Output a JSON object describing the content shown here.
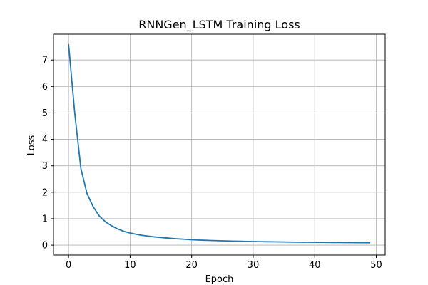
{
  "chart_data": {
    "type": "line",
    "title": "RNNGen_LSTM Training Loss",
    "xlabel": "Epoch",
    "ylabel": "Loss",
    "xlim": [
      -2.45,
      51.45
    ],
    "ylim": [
      -0.375,
      7.975
    ],
    "xticks": [
      0,
      10,
      20,
      30,
      40,
      50
    ],
    "yticks": [
      0,
      1,
      2,
      3,
      4,
      5,
      6,
      7
    ],
    "grid": true,
    "legend": "none",
    "colors": {
      "line": "#1f77b4",
      "grid": "#b0b0b0",
      "axes": "#000000"
    },
    "series": [
      {
        "x": [
          0,
          1,
          2,
          3,
          4,
          5,
          6,
          7,
          8,
          9,
          10,
          11,
          12,
          13,
          14,
          15,
          16,
          17,
          18,
          19,
          20,
          21,
          22,
          23,
          24,
          25,
          26,
          27,
          28,
          29,
          30,
          31,
          32,
          33,
          34,
          35,
          36,
          37,
          38,
          39,
          40,
          41,
          42,
          43,
          44,
          45,
          46,
          47,
          48,
          49
        ],
        "values": [
          7.6,
          5.0,
          2.9,
          1.95,
          1.45,
          1.1,
          0.88,
          0.73,
          0.61,
          0.52,
          0.46,
          0.41,
          0.37,
          0.34,
          0.31,
          0.29,
          0.27,
          0.25,
          0.235,
          0.22,
          0.205,
          0.195,
          0.185,
          0.177,
          0.17,
          0.163,
          0.157,
          0.151,
          0.146,
          0.141,
          0.137,
          0.133,
          0.129,
          0.126,
          0.123,
          0.12,
          0.117,
          0.114,
          0.112,
          0.11,
          0.108,
          0.106,
          0.104,
          0.102,
          0.1,
          0.098,
          0.096,
          0.094,
          0.092,
          0.09
        ]
      }
    ]
  }
}
